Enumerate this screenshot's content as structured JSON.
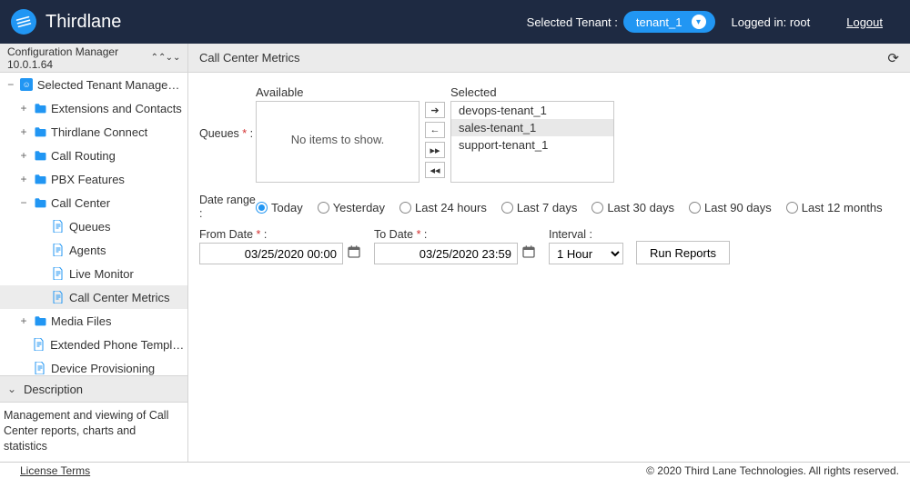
{
  "header": {
    "brand": "Thirdlane",
    "tenant_label": "Selected Tenant :",
    "tenant_value": "tenant_1",
    "logged_in": "Logged in: root",
    "logout": "Logout"
  },
  "sidebar": {
    "config_title": "Configuration Manager 10.0.1.64",
    "root": "Selected Tenant Management",
    "items": [
      {
        "label": "Extensions and Contacts",
        "type": "folder",
        "expand": "+"
      },
      {
        "label": "Thirdlane Connect",
        "type": "folder",
        "expand": "+"
      },
      {
        "label": "Call Routing",
        "type": "folder",
        "expand": "+"
      },
      {
        "label": "PBX Features",
        "type": "folder",
        "expand": "+"
      },
      {
        "label": "Call Center",
        "type": "folder",
        "expand": "−",
        "children": [
          {
            "label": "Queues"
          },
          {
            "label": "Agents"
          },
          {
            "label": "Live Monitor"
          },
          {
            "label": "Call Center Metrics",
            "selected": true
          }
        ]
      },
      {
        "label": "Media Files",
        "type": "folder",
        "expand": "+"
      },
      {
        "label": "Extended Phone Templat...",
        "type": "file"
      },
      {
        "label": "Device Provisioning",
        "type": "file"
      }
    ],
    "description_title": "Description",
    "description_body": "Management and viewing of Call Center reports, charts and statistics"
  },
  "page": {
    "title": "Call Center Metrics",
    "queues_label": "Queues",
    "available_label": "Available",
    "selected_label": "Selected",
    "available_empty": "No items to show.",
    "selected_items": [
      "devops-tenant_1",
      "sales-tenant_1",
      "support-tenant_1"
    ],
    "date_range_label": "Date range :",
    "radios": [
      "Today",
      "Yesterday",
      "Last 24 hours",
      "Last 7 days",
      "Last 30 days",
      "Last 90 days",
      "Last 12 months"
    ],
    "radio_selected": "Today",
    "from_label": "From Date",
    "to_label": "To Date",
    "from_value": "03/25/2020 00:00",
    "to_value": "03/25/2020 23:59",
    "interval_label": "Interval :",
    "interval_value": "1 Hour",
    "run_label": "Run Reports"
  },
  "footer": {
    "terms": "License Terms",
    "copyright": "© 2020 Third Lane Technologies. All rights reserved."
  }
}
